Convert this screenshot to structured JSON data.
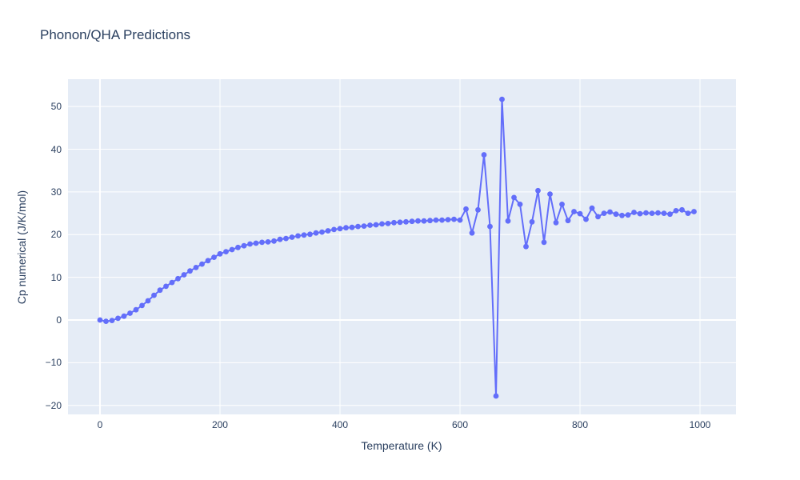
{
  "page": {
    "title": "Phonon/QHA Predictions"
  },
  "chart_data": {
    "type": "line",
    "mode": "lines+markers",
    "title": "Phonon/QHA Predictions",
    "xlabel": "Temperature (K)",
    "ylabel": "Cp numerical (J/K/mol)",
    "legend_position": "none",
    "grid": true,
    "plot_bg_color": "#e5ecf6",
    "grid_color": "#ffffff",
    "line_color": "#636efa",
    "text_color": "#2a3f5f",
    "x_range": [
      -53.3,
      1060.0
    ],
    "y_range": [
      -22.1,
      56.4
    ],
    "x_ticks": [
      0,
      200,
      400,
      600,
      800,
      1000
    ],
    "y_ticks": [
      -20,
      -10,
      0,
      10,
      20,
      30,
      40,
      50
    ],
    "series": [
      {
        "name": "Cp numerical",
        "x": [
          0,
          10,
          20,
          30,
          40,
          50,
          60,
          70,
          80,
          90,
          100,
          110,
          120,
          130,
          140,
          150,
          160,
          170,
          180,
          190,
          200,
          210,
          220,
          230,
          240,
          250,
          260,
          270,
          280,
          290,
          300,
          310,
          320,
          330,
          340,
          350,
          360,
          370,
          380,
          390,
          400,
          410,
          420,
          430,
          440,
          450,
          460,
          470,
          480,
          490,
          500,
          510,
          520,
          530,
          540,
          550,
          560,
          570,
          580,
          590,
          600,
          610,
          620,
          630,
          640,
          650,
          660,
          670,
          680,
          690,
          700,
          710,
          720,
          730,
          740,
          750,
          760,
          770,
          780,
          790,
          800,
          810,
          820,
          830,
          840,
          850,
          860,
          870,
          880,
          890,
          900,
          910,
          920,
          930,
          940,
          950,
          960,
          970,
          980,
          990
        ],
        "y": [
          0.0,
          -0.3,
          -0.1,
          0.4,
          0.9,
          1.6,
          2.4,
          3.4,
          4.5,
          5.8,
          7.0,
          7.9,
          8.8,
          9.7,
          10.6,
          11.5,
          12.3,
          13.1,
          13.9,
          14.7,
          15.5,
          16.0,
          16.5,
          17.0,
          17.4,
          17.8,
          18.0,
          18.2,
          18.3,
          18.5,
          18.9,
          19.1,
          19.4,
          19.7,
          19.9,
          20.1,
          20.4,
          20.6,
          20.9,
          21.2,
          21.4,
          21.6,
          21.7,
          21.9,
          22.0,
          22.2,
          22.3,
          22.5,
          22.6,
          22.8,
          22.9,
          23.0,
          23.1,
          23.2,
          23.2,
          23.3,
          23.4,
          23.4,
          23.5,
          23.6,
          23.4,
          26.0,
          20.4,
          25.8,
          38.7,
          21.9,
          -17.8,
          51.7,
          23.2,
          28.7,
          27.1,
          17.2,
          23.0,
          30.3,
          18.2,
          29.5,
          22.8,
          27.1,
          23.3,
          25.4,
          24.9,
          23.6,
          26.2,
          24.2,
          25.0,
          25.3,
          24.8,
          24.5,
          24.6,
          25.2,
          24.9,
          25.1,
          25.0,
          25.1,
          25.0,
          24.8,
          25.6,
          25.8,
          25.0,
          25.4
        ]
      }
    ]
  }
}
